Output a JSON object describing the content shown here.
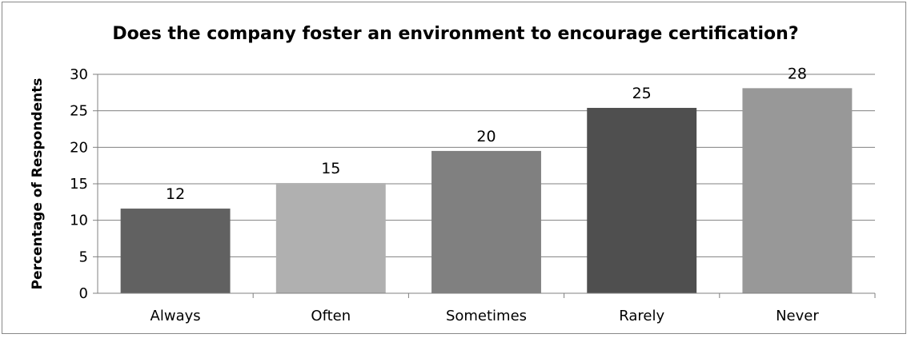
{
  "chart_data": {
    "type": "bar",
    "title": "Does the company foster an environment to encourage certification?",
    "xlabel": "",
    "ylabel": "Percentage of Respondents",
    "categories": [
      "Always",
      "Often",
      "Sometimes",
      "Rarely",
      "Never"
    ],
    "values": [
      11.6,
      15.1,
      19.5,
      25.4,
      28.1
    ],
    "data_labels": [
      "12",
      "15",
      "20",
      "25",
      "28"
    ],
    "ylim": [
      0,
      30
    ],
    "yticks": [
      0,
      5,
      10,
      15,
      20,
      25,
      30
    ],
    "grid": true,
    "legend": "none",
    "colors": [
      "#616161",
      "#b0b0b0",
      "#808080",
      "#4f4f4f",
      "#989898"
    ],
    "gridline_color": "#808080",
    "axis_color": "#808080"
  }
}
